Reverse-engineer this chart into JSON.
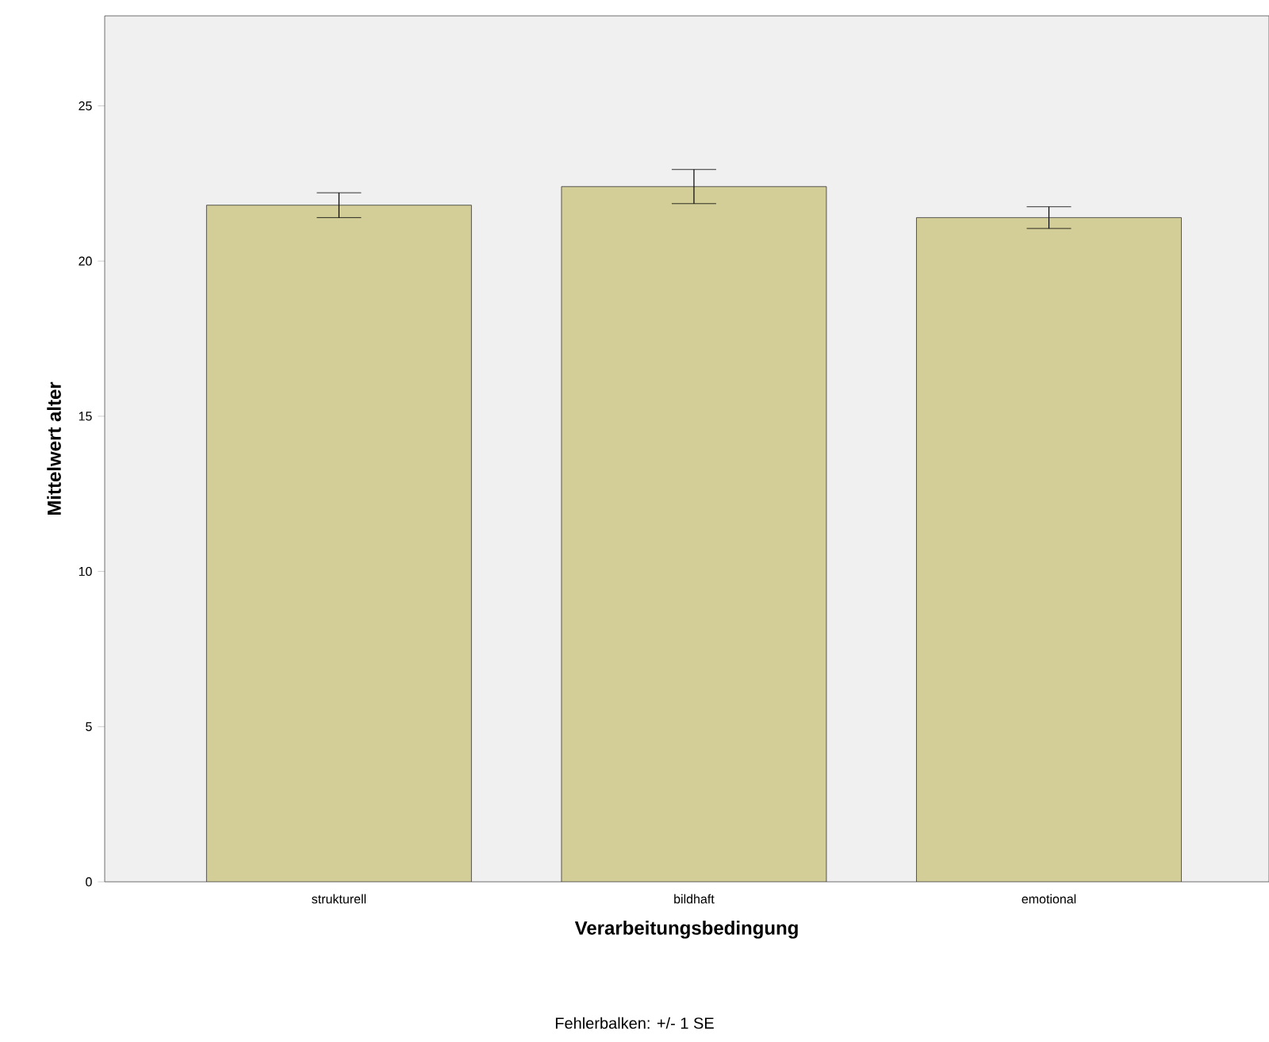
{
  "chart_data": {
    "type": "bar",
    "xlabel": "Verarbeitungsbedingung",
    "ylabel": "Mittelwert alter",
    "categories": [
      "strukturell",
      "bildhaft",
      "emotional"
    ],
    "values": [
      21.8,
      22.4,
      21.4
    ],
    "errors": [
      0.4,
      0.55,
      0.35
    ],
    "color": "#d3ce97",
    "ylim": [
      0,
      27.9
    ],
    "yticks": [
      0,
      5,
      10,
      15,
      20,
      25
    ],
    "annotations": [
      "Fehlerbalken: +/- 1 SE"
    ]
  }
}
